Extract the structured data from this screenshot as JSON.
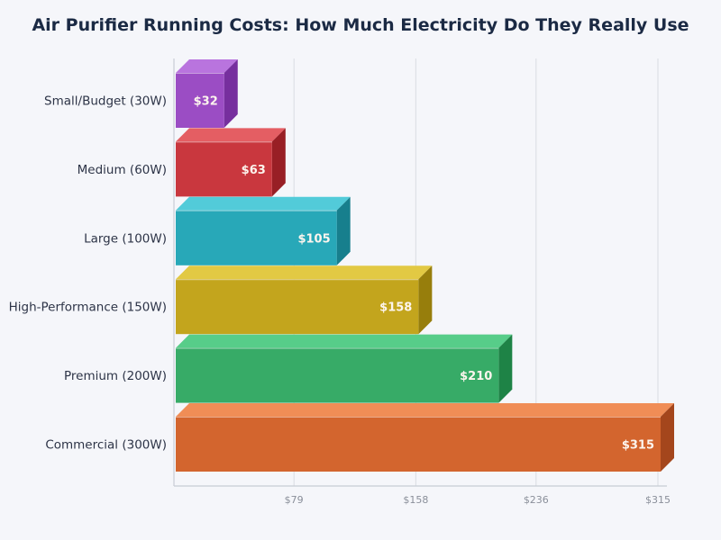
{
  "chart_data": {
    "type": "bar",
    "orientation": "horizontal",
    "style": "3d",
    "title": "Air Purifier Running Costs: How Much Electricity Do They Really Use",
    "categories": [
      "Small/Budget (30W)",
      "Medium (60W)",
      "Large (100W)",
      "High-Performance (150W)",
      "Premium (200W)",
      "Commercial (300W)"
    ],
    "values": [
      32,
      63,
      105,
      158,
      210,
      315
    ],
    "data_labels": [
      "$32",
      "$63",
      "$105",
      "$158",
      "$210",
      "$315"
    ],
    "xticks": [
      79,
      158,
      236,
      315
    ],
    "xtick_labels": [
      "$79",
      "$158",
      "$236",
      "$315"
    ],
    "xlim": [
      0,
      315
    ],
    "grid": "vertical",
    "legend": "none",
    "colors": [
      {
        "front": "#9b4dc4",
        "top": "#b974de",
        "side": "#762f9e"
      },
      {
        "front": "#c9373e",
        "top": "#e45e63",
        "side": "#981f25"
      },
      {
        "front": "#28a8b8",
        "top": "#52cbd9",
        "side": "#177f8d"
      },
      {
        "front": "#c3a51d",
        "top": "#e2c943",
        "side": "#977e0c"
      },
      {
        "front": "#37ab67",
        "top": "#57cd89",
        "side": "#1e8346"
      },
      {
        "front": "#d3652e",
        "top": "#f08d56",
        "side": "#a4461c"
      }
    ]
  }
}
